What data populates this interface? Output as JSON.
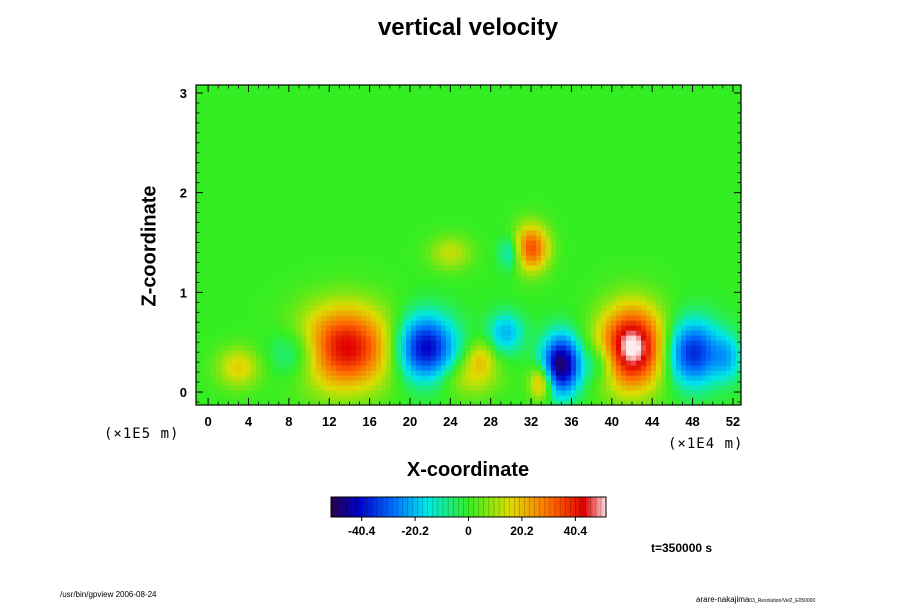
{
  "chart_data": {
    "type": "heatmap",
    "title": "vertical velocity",
    "xlabel": "X-coordinate",
    "ylabel": "Z-coordinate",
    "x_unit": "(×1E4 m)",
    "y_unit": "(×1E5 m)",
    "x_ticks": [
      "0",
      "4",
      "8",
      "12",
      "16",
      "20",
      "24",
      "28",
      "32",
      "36",
      "40",
      "44",
      "48",
      "52"
    ],
    "x_tick_values": [
      0,
      4,
      8,
      12,
      16,
      20,
      24,
      28,
      32,
      36,
      40,
      44,
      48,
      52
    ],
    "y_ticks": [
      "0",
      "1",
      "2",
      "3"
    ],
    "y_tick_values": [
      0,
      1,
      2,
      3
    ],
    "xlim": [
      -1.2,
      52.8
    ],
    "ylim": [
      -0.13,
      3.08
    ],
    "colorbar": {
      "ticks": [
        "-40.4",
        "-20.2",
        "0",
        "20.2",
        "40.4"
      ],
      "tick_values": [
        -40.4,
        -20.2,
        0,
        20.2,
        40.4
      ],
      "range": [
        -52,
        52
      ]
    },
    "features": [
      {
        "x": 13.5,
        "z": 0.45,
        "value": 45,
        "sx": 3.2,
        "sz": 0.28
      },
      {
        "x": 21.5,
        "z": 0.45,
        "value": -42,
        "sx": 2.0,
        "sz": 0.22
      },
      {
        "x": 35.0,
        "z": 0.28,
        "value": -50,
        "sx": 1.3,
        "sz": 0.2
      },
      {
        "x": 42.0,
        "z": 0.45,
        "value": 55,
        "sx": 2.2,
        "sz": 0.28
      },
      {
        "x": 48.0,
        "z": 0.4,
        "value": -36,
        "sx": 1.9,
        "sz": 0.22
      },
      {
        "x": 32.0,
        "z": 1.45,
        "value": 34,
        "sx": 1.2,
        "sz": 0.16
      },
      {
        "x": 3.0,
        "z": 0.25,
        "value": 16,
        "sx": 1.5,
        "sz": 0.14
      },
      {
        "x": 29.5,
        "z": 0.6,
        "value": -18,
        "sx": 1.2,
        "sz": 0.14
      },
      {
        "x": 26.0,
        "z": 0.15,
        "value": 12,
        "sx": 2.0,
        "sz": 0.14
      },
      {
        "x": 33.0,
        "z": 0.1,
        "value": 24,
        "sx": 0.8,
        "sz": 0.12
      },
      {
        "x": 9.0,
        "z": 0.4,
        "value": -16,
        "sx": 2.0,
        "sz": 0.18
      },
      {
        "x": 39.0,
        "z": 0.3,
        "value": -14,
        "sx": 1.2,
        "sz": 0.14
      },
      {
        "x": 51.5,
        "z": 0.35,
        "value": -14,
        "sx": 1.0,
        "sz": 0.16
      },
      {
        "x": 30.0,
        "z": 1.4,
        "value": -14,
        "sx": 0.8,
        "sz": 0.12
      },
      {
        "x": 24.0,
        "z": 1.4,
        "value": 12,
        "sx": 1.5,
        "sz": 0.12
      },
      {
        "x": 27.0,
        "z": 0.35,
        "value": 14,
        "sx": 1.0,
        "sz": 0.12
      }
    ]
  },
  "annotations": {
    "time_label": "t=350000 s",
    "footer_left": "/usr/bin/gpview 2006-08-24",
    "footer_right_main": "arare-nakajima",
    "footer_right_small": "03_Resolution/Vel2_E050000"
  }
}
